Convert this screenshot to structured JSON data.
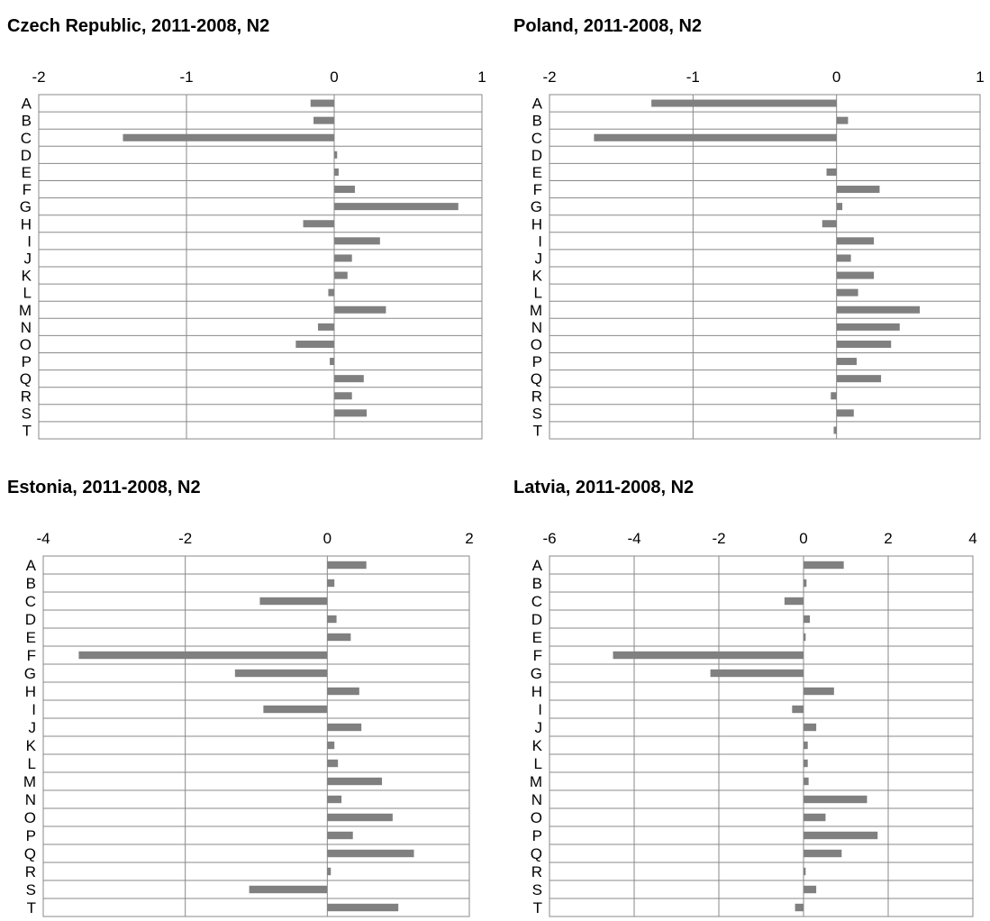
{
  "chart_data": [
    {
      "type": "bar",
      "title": "Czech Republic, 2011-2008, N2",
      "orientation": "horizontal",
      "categories": [
        "A",
        "B",
        "C",
        "D",
        "E",
        "F",
        "G",
        "H",
        "I",
        "J",
        "K",
        "L",
        "M",
        "N",
        "O",
        "P",
        "Q",
        "R",
        "S",
        "T"
      ],
      "values": [
        -0.16,
        -0.14,
        -1.43,
        0.02,
        0.03,
        0.14,
        0.84,
        -0.21,
        0.31,
        0.12,
        0.09,
        -0.04,
        0.35,
        -0.11,
        -0.26,
        -0.03,
        0.2,
        0.12,
        0.22,
        0.0
      ],
      "xlim": [
        -2,
        1
      ],
      "xticks": [
        "-2",
        "-1",
        "0",
        "1"
      ],
      "axis_position": "top",
      "grid": true,
      "bar_color": "#808080"
    },
    {
      "type": "bar",
      "title": "Poland, 2011-2008, N2",
      "orientation": "horizontal",
      "categories": [
        "A",
        "B",
        "C",
        "D",
        "E",
        "F",
        "G",
        "H",
        "I",
        "J",
        "K",
        "L",
        "M",
        "N",
        "O",
        "P",
        "Q",
        "R",
        "S",
        "T"
      ],
      "values": [
        -1.29,
        0.08,
        -1.69,
        0.0,
        -0.07,
        0.3,
        0.04,
        -0.1,
        0.26,
        0.1,
        0.26,
        0.15,
        0.58,
        0.44,
        0.38,
        0.14,
        0.31,
        -0.04,
        0.12,
        -0.02
      ],
      "xlim": [
        -2,
        1
      ],
      "xticks": [
        "-2",
        "-1",
        "0",
        "1"
      ],
      "axis_position": "top",
      "grid": true,
      "bar_color": "#808080"
    },
    {
      "type": "bar",
      "title": "Estonia, 2011-2008, N2",
      "orientation": "horizontal",
      "categories": [
        "A",
        "B",
        "C",
        "D",
        "E",
        "F",
        "G",
        "H",
        "I",
        "J",
        "K",
        "L",
        "M",
        "N",
        "O",
        "P",
        "Q",
        "R",
        "S",
        "T"
      ],
      "values": [
        0.55,
        0.1,
        -0.95,
        0.13,
        0.33,
        -3.5,
        -1.3,
        0.45,
        -0.9,
        0.48,
        0.1,
        0.15,
        0.77,
        0.2,
        0.92,
        0.36,
        1.22,
        0.05,
        -1.1,
        1.0
      ],
      "xlim": [
        -4,
        2
      ],
      "xticks": [
        "-4",
        "-2",
        "0",
        "2"
      ],
      "axis_position": "top",
      "grid": true,
      "bar_color": "#808080"
    },
    {
      "type": "bar",
      "title": "Latvia, 2011-2008, N2",
      "orientation": "horizontal",
      "categories": [
        "A",
        "B",
        "C",
        "D",
        "E",
        "F",
        "G",
        "H",
        "I",
        "J",
        "K",
        "L",
        "M",
        "N",
        "O",
        "P",
        "Q",
        "R",
        "S",
        "T"
      ],
      "values": [
        0.95,
        0.07,
        -0.45,
        0.15,
        0.05,
        -4.5,
        -2.2,
        0.72,
        -0.27,
        0.3,
        0.1,
        0.1,
        0.12,
        1.5,
        0.52,
        1.75,
        0.9,
        0.05,
        0.3,
        -0.2
      ],
      "xlim": [
        -6,
        4
      ],
      "xticks": [
        "-6",
        "-4",
        "-2",
        "0",
        "2",
        "4"
      ],
      "axis_position": "top",
      "grid": true,
      "bar_color": "#808080"
    }
  ]
}
